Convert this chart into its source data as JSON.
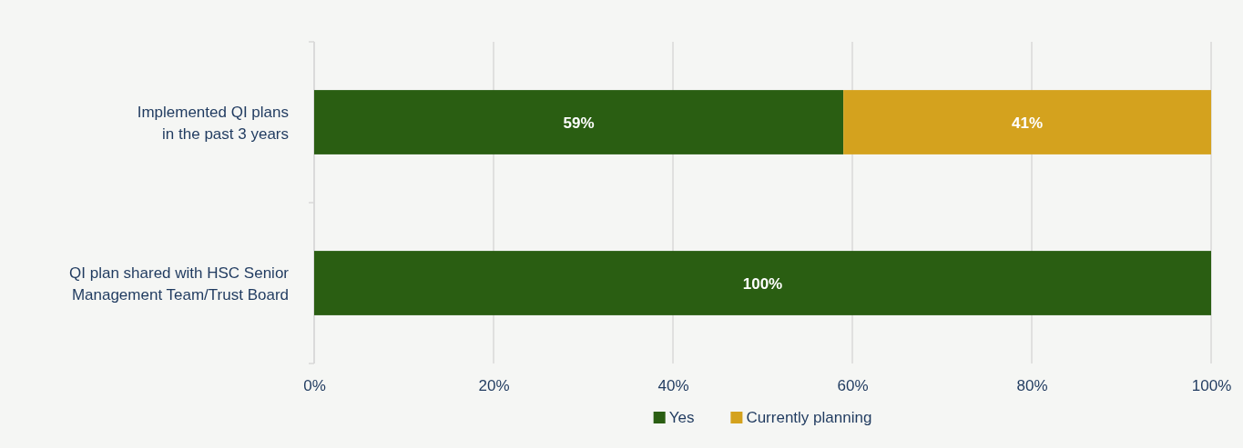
{
  "chart_data": {
    "type": "bar",
    "orientation": "horizontal",
    "stacked": true,
    "categories": [
      "Implemented QI plans\nin the past 3 years",
      "QI plan shared with HSC Senior\nManagement Team/Trust Board"
    ],
    "series": [
      {
        "name": "Yes",
        "color": "#2a5e12",
        "values": [
          59,
          100
        ],
        "value_labels": [
          "59%",
          "100%"
        ]
      },
      {
        "name": "Currently planning",
        "color": "#d4a21e",
        "values": [
          41,
          null
        ],
        "value_labels": [
          "41%",
          null
        ]
      }
    ],
    "xlim": [
      0,
      100
    ],
    "xticks": [
      {
        "value": 0,
        "label": "0%"
      },
      {
        "value": 20,
        "label": "20%"
      },
      {
        "value": 40,
        "label": "40%"
      },
      {
        "value": 60,
        "label": "60%"
      },
      {
        "value": 80,
        "label": "80%"
      },
      {
        "value": 100,
        "label": "100%"
      }
    ],
    "grid": "x",
    "legend": "bottom"
  }
}
